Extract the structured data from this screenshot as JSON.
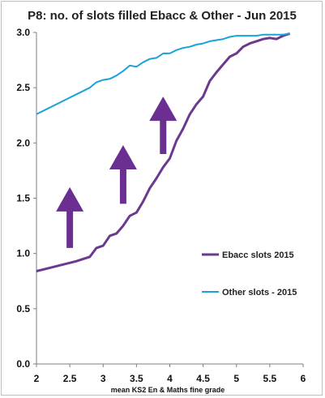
{
  "chart_data": {
    "type": "line",
    "title": "P8: no. of slots filled Ebacc & Other - Jun 2015",
    "xlabel": "mean KS2 En & Maths fine grade",
    "ylabel": "",
    "xlim": [
      2,
      6
    ],
    "ylim": [
      0.0,
      3.0
    ],
    "x_ticks": [
      "2",
      "2.5",
      "3",
      "3.5",
      "4",
      "4.5",
      "5",
      "5.5",
      "6"
    ],
    "y_ticks": [
      "0.0",
      "0.5",
      "1.0",
      "1.5",
      "2.0",
      "2.5",
      "3.0"
    ],
    "grid": false,
    "legend_position": "right",
    "series": [
      {
        "name": "Ebacc slots 2015",
        "color": "#6b3a8c",
        "points": [
          [
            2.0,
            0.84
          ],
          [
            2.2,
            0.87
          ],
          [
            2.4,
            0.9
          ],
          [
            2.6,
            0.93
          ],
          [
            2.8,
            0.97
          ],
          [
            2.9,
            1.05
          ],
          [
            3.0,
            1.07
          ],
          [
            3.1,
            1.16
          ],
          [
            3.2,
            1.18
          ],
          [
            3.3,
            1.25
          ],
          [
            3.4,
            1.34
          ],
          [
            3.5,
            1.37
          ],
          [
            3.6,
            1.47
          ],
          [
            3.7,
            1.59
          ],
          [
            3.8,
            1.68
          ],
          [
            3.9,
            1.78
          ],
          [
            4.0,
            1.86
          ],
          [
            4.1,
            2.02
          ],
          [
            4.2,
            2.13
          ],
          [
            4.3,
            2.26
          ],
          [
            4.4,
            2.35
          ],
          [
            4.5,
            2.42
          ],
          [
            4.6,
            2.56
          ],
          [
            4.7,
            2.64
          ],
          [
            4.8,
            2.71
          ],
          [
            4.9,
            2.78
          ],
          [
            5.0,
            2.81
          ],
          [
            5.1,
            2.87
          ],
          [
            5.2,
            2.9
          ],
          [
            5.3,
            2.92
          ],
          [
            5.4,
            2.94
          ],
          [
            5.5,
            2.95
          ],
          [
            5.6,
            2.94
          ],
          [
            5.7,
            2.97
          ],
          [
            5.8,
            2.99
          ]
        ]
      },
      {
        "name": "Other slots - 2015",
        "color": "#1aa3d9",
        "points": [
          [
            2.0,
            2.26
          ],
          [
            2.2,
            2.32
          ],
          [
            2.4,
            2.38
          ],
          [
            2.6,
            2.44
          ],
          [
            2.8,
            2.5
          ],
          [
            2.9,
            2.55
          ],
          [
            3.0,
            2.57
          ],
          [
            3.1,
            2.58
          ],
          [
            3.2,
            2.61
          ],
          [
            3.3,
            2.65
          ],
          [
            3.4,
            2.7
          ],
          [
            3.5,
            2.69
          ],
          [
            3.6,
            2.73
          ],
          [
            3.7,
            2.76
          ],
          [
            3.8,
            2.77
          ],
          [
            3.9,
            2.81
          ],
          [
            4.0,
            2.81
          ],
          [
            4.1,
            2.84
          ],
          [
            4.2,
            2.86
          ],
          [
            4.3,
            2.87
          ],
          [
            4.4,
            2.89
          ],
          [
            4.5,
            2.9
          ],
          [
            4.6,
            2.92
          ],
          [
            4.7,
            2.93
          ],
          [
            4.8,
            2.94
          ],
          [
            4.9,
            2.96
          ],
          [
            5.0,
            2.97
          ],
          [
            5.1,
            2.97
          ],
          [
            5.2,
            2.97
          ],
          [
            5.3,
            2.97
          ],
          [
            5.4,
            2.98
          ],
          [
            5.5,
            2.98
          ],
          [
            5.6,
            2.98
          ],
          [
            5.7,
            2.98
          ],
          [
            5.8,
            2.99
          ]
        ]
      }
    ],
    "annotations": [
      {
        "type": "up-arrow",
        "color": "#6b2f91",
        "x": 2.5,
        "y_from": 1.05,
        "y_to": 1.6
      },
      {
        "type": "up-arrow",
        "color": "#6b2f91",
        "x": 3.3,
        "y_from": 1.45,
        "y_to": 1.98
      },
      {
        "type": "up-arrow",
        "color": "#6b2f91",
        "x": 3.9,
        "y_from": 1.9,
        "y_to": 2.42
      }
    ]
  }
}
